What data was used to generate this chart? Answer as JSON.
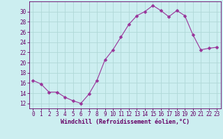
{
  "x": [
    0,
    1,
    2,
    3,
    4,
    5,
    6,
    7,
    8,
    9,
    10,
    11,
    12,
    13,
    14,
    15,
    16,
    17,
    18,
    19,
    20,
    21,
    22,
    23
  ],
  "y": [
    16.5,
    15.8,
    14.2,
    14.2,
    13.2,
    12.5,
    12.0,
    13.8,
    16.5,
    20.5,
    22.5,
    25.0,
    27.5,
    29.2,
    30.0,
    31.2,
    30.2,
    29.0,
    30.2,
    29.2,
    25.5,
    22.5,
    22.8,
    23.0
  ],
  "line_color": "#993399",
  "marker": "D",
  "marker_size": 2.5,
  "bg_color": "#cceef0",
  "grid_color": "#b0d8d8",
  "xlabel": "Windchill (Refroidissement éolien,°C)",
  "xlabel_color": "#660066",
  "tick_color": "#660066",
  "ylim": [
    11,
    32
  ],
  "xlim": [
    -0.5,
    23.5
  ],
  "yticks": [
    12,
    14,
    16,
    18,
    20,
    22,
    24,
    26,
    28,
    30
  ],
  "xticks": [
    0,
    1,
    2,
    3,
    4,
    5,
    6,
    7,
    8,
    9,
    10,
    11,
    12,
    13,
    14,
    15,
    16,
    17,
    18,
    19,
    20,
    21,
    22,
    23
  ],
  "xlabel_fontsize": 6.0,
  "tick_fontsize": 5.5
}
